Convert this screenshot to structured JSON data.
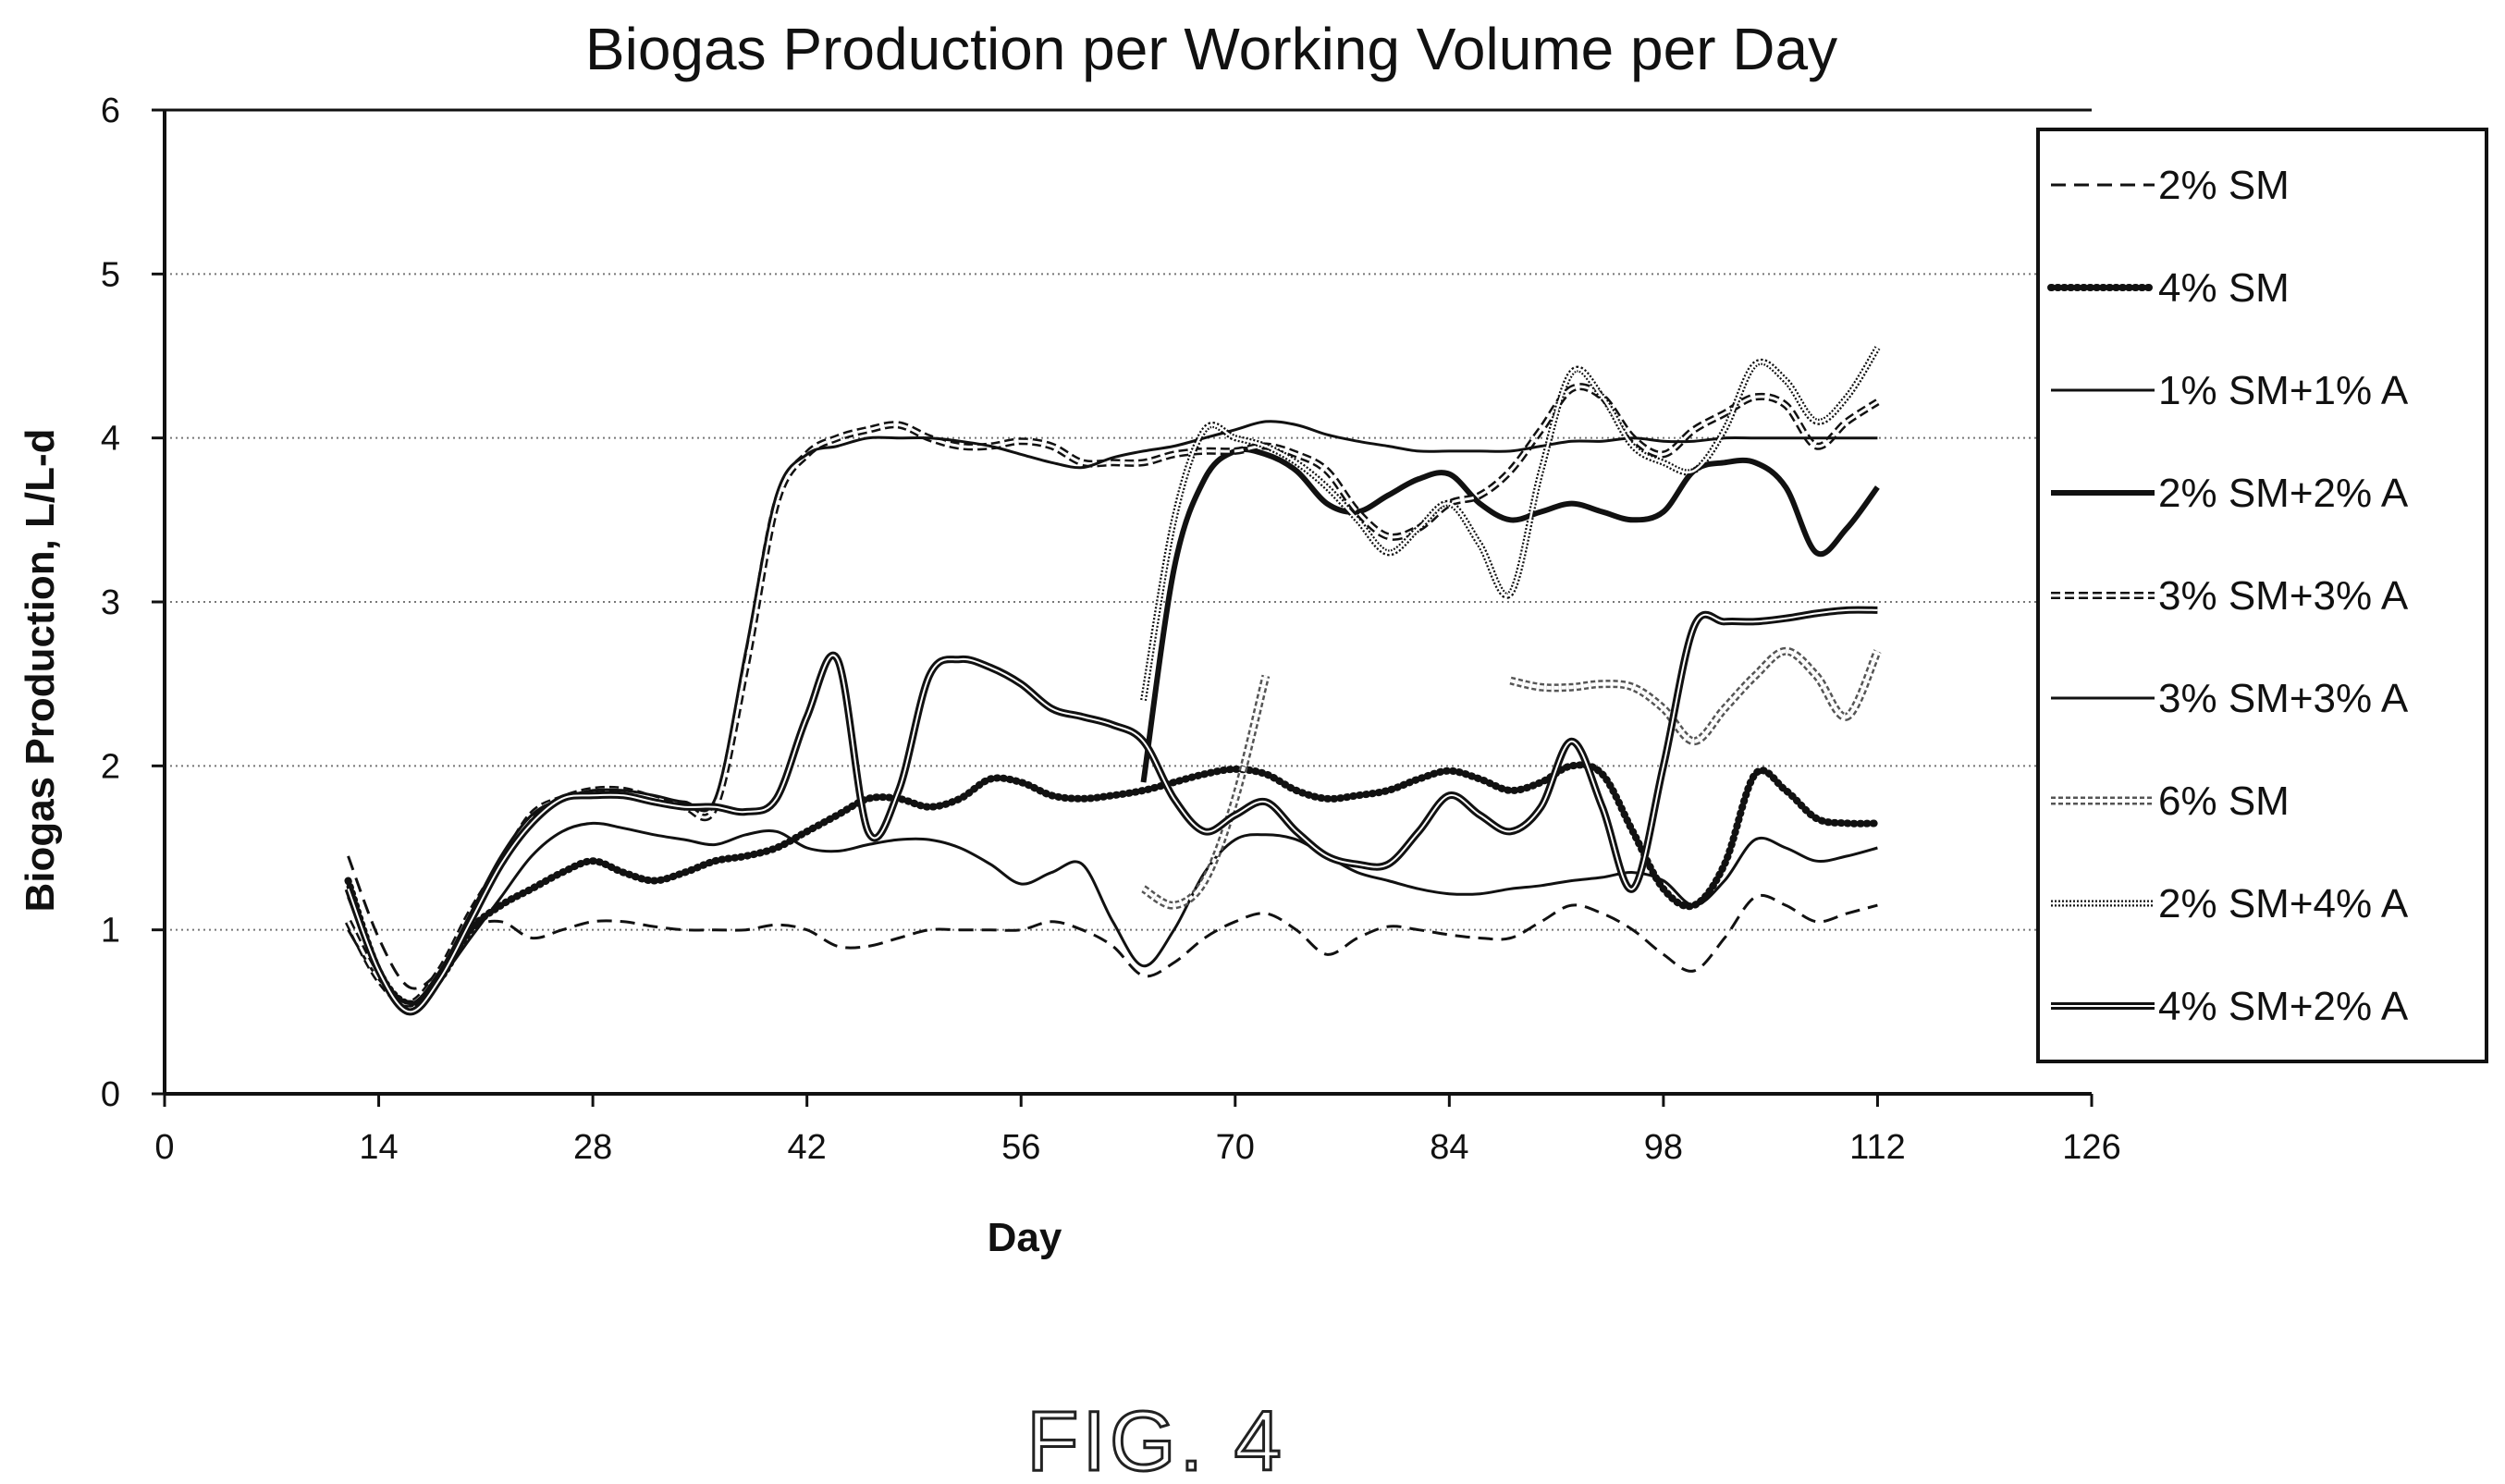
{
  "chart_data": {
    "type": "line",
    "title": "Biogas Production per Working Volume per Day",
    "xlabel": "Day",
    "ylabel": "Biogas Production, L/L-d",
    "xlim": [
      0,
      126
    ],
    "ylim": [
      0,
      6
    ],
    "xticks": [
      "0",
      "14",
      "28",
      "42",
      "56",
      "70",
      "84",
      "98",
      "112",
      "126"
    ],
    "yticks": [
      "0",
      "1",
      "2",
      "3",
      "4",
      "5",
      "6"
    ],
    "grid": "horizontal dotted",
    "legend_position": "right",
    "series": [
      {
        "name": "2% SM",
        "style": "dashed",
        "x": [
          12,
          14,
          16,
          18,
          20,
          22,
          24,
          26,
          28,
          30,
          32,
          34,
          36,
          38,
          40,
          42,
          44,
          46,
          48,
          50,
          52,
          54,
          56,
          58,
          60,
          62,
          64,
          66,
          68,
          70,
          72,
          74,
          76,
          78,
          80,
          82,
          84,
          86,
          88,
          90,
          92,
          94,
          96,
          98,
          100,
          102,
          104,
          106,
          108,
          110,
          112
        ],
        "y": [
          1.45,
          0.95,
          0.65,
          0.75,
          1.0,
          1.05,
          0.95,
          1.0,
          1.05,
          1.05,
          1.02,
          1.0,
          1.0,
          1.0,
          1.03,
          1.0,
          0.9,
          0.9,
          0.95,
          1.0,
          1.0,
          1.0,
          1.0,
          1.05,
          1.0,
          0.9,
          0.72,
          0.8,
          0.95,
          1.05,
          1.1,
          1.0,
          0.85,
          0.95,
          1.02,
          1.0,
          0.97,
          0.95,
          0.95,
          1.05,
          1.15,
          1.1,
          1.0,
          0.85,
          0.75,
          0.95,
          1.2,
          1.15,
          1.05,
          1.1,
          1.15
        ]
      },
      {
        "name": "4% SM",
        "style": "dotted-bold",
        "x": [
          12,
          14,
          16,
          18,
          20,
          22,
          24,
          26,
          28,
          30,
          32,
          34,
          36,
          38,
          40,
          42,
          44,
          46,
          48,
          50,
          52,
          54,
          56,
          58,
          60,
          62,
          64,
          66,
          68,
          70,
          72,
          74,
          76,
          78,
          80,
          82,
          84,
          86,
          88,
          90,
          92,
          94,
          96,
          98,
          100,
          102,
          104,
          106,
          108,
          110,
          112
        ],
        "y": [
          1.3,
          0.75,
          0.55,
          0.7,
          1.0,
          1.15,
          1.25,
          1.35,
          1.42,
          1.35,
          1.3,
          1.35,
          1.42,
          1.45,
          1.5,
          1.6,
          1.7,
          1.8,
          1.8,
          1.75,
          1.8,
          1.92,
          1.9,
          1.82,
          1.8,
          1.82,
          1.85,
          1.9,
          1.95,
          1.98,
          1.95,
          1.85,
          1.8,
          1.82,
          1.85,
          1.92,
          1.97,
          1.92,
          1.85,
          1.9,
          2.0,
          1.95,
          1.6,
          1.25,
          1.15,
          1.4,
          1.95,
          1.85,
          1.68,
          1.65,
          1.65
        ]
      },
      {
        "name": "1% SM+1% A",
        "style": "solid-thin",
        "x": [
          12,
          14,
          16,
          18,
          20,
          22,
          24,
          26,
          28,
          30,
          32,
          34,
          36,
          38,
          40,
          42,
          44,
          46,
          48,
          50,
          52,
          54,
          56,
          58,
          60,
          62,
          64,
          66,
          68,
          70,
          72,
          74,
          76,
          78,
          80,
          82,
          84,
          86,
          88,
          90,
          92,
          94,
          96,
          98,
          100,
          102,
          104,
          106,
          108,
          110,
          112
        ],
        "y": [
          1.0,
          0.7,
          0.55,
          0.7,
          0.95,
          1.2,
          1.45,
          1.6,
          1.65,
          1.62,
          1.58,
          1.55,
          1.52,
          1.58,
          1.6,
          1.5,
          1.48,
          1.52,
          1.55,
          1.55,
          1.5,
          1.4,
          1.28,
          1.35,
          1.4,
          1.05,
          0.78,
          1.0,
          1.35,
          1.55,
          1.58,
          1.55,
          1.45,
          1.35,
          1.3,
          1.25,
          1.22,
          1.22,
          1.25,
          1.27,
          1.3,
          1.32,
          1.35,
          1.3,
          1.15,
          1.3,
          1.55,
          1.5,
          1.42,
          1.45,
          1.5
        ]
      },
      {
        "name": "2% SM+2% A",
        "style": "solid-bold",
        "x": [
          64,
          66,
          68,
          70,
          72,
          74,
          76,
          78,
          80,
          82,
          84,
          86,
          88,
          90,
          92,
          94,
          96,
          98,
          100,
          102,
          104,
          106,
          108,
          110,
          112
        ],
        "y": [
          1.9,
          3.2,
          3.75,
          3.92,
          3.9,
          3.8,
          3.6,
          3.55,
          3.65,
          3.75,
          3.78,
          3.6,
          3.5,
          3.55,
          3.6,
          3.55,
          3.5,
          3.55,
          3.8,
          3.85,
          3.85,
          3.7,
          3.3,
          3.45,
          3.7
        ]
      },
      {
        "name": "3% SM+3% A",
        "style": "dashed-double",
        "x": [
          12,
          14,
          16,
          18,
          20,
          22,
          24,
          26,
          28,
          30,
          32,
          34,
          36,
          38,
          40,
          42,
          44,
          46,
          48,
          50,
          52,
          54,
          56,
          58,
          60,
          62,
          64,
          66,
          68,
          70,
          72,
          74,
          76,
          78,
          80,
          82,
          84,
          86,
          88,
          90,
          92,
          94,
          96,
          98,
          100,
          102,
          104,
          106,
          108,
          110,
          112
        ],
        "y": [
          1.05,
          0.7,
          0.55,
          0.75,
          1.1,
          1.4,
          1.7,
          1.8,
          1.85,
          1.85,
          1.8,
          1.75,
          1.75,
          2.6,
          3.6,
          3.9,
          4.0,
          4.05,
          4.08,
          4.0,
          3.95,
          3.95,
          3.98,
          3.95,
          3.85,
          3.85,
          3.85,
          3.9,
          3.92,
          3.92,
          3.95,
          3.9,
          3.8,
          3.55,
          3.4,
          3.45,
          3.6,
          3.65,
          3.8,
          4.05,
          4.3,
          4.25,
          4.0,
          3.9,
          4.05,
          4.15,
          4.25,
          4.2,
          3.95,
          4.1,
          4.22
        ]
      },
      {
        "name": "3% SM+3% A",
        "style": "solid-thin",
        "x": [
          12,
          14,
          16,
          18,
          20,
          22,
          24,
          26,
          28,
          30,
          32,
          34,
          36,
          38,
          40,
          42,
          44,
          46,
          48,
          50,
          52,
          54,
          56,
          58,
          60,
          62,
          64,
          66,
          68,
          70,
          72,
          74,
          76,
          78,
          80,
          82,
          84,
          86,
          88,
          90,
          92,
          94,
          96,
          98,
          100,
          102,
          104,
          106,
          108,
          110,
          112
        ],
        "y": [
          1.2,
          0.75,
          0.55,
          0.75,
          1.1,
          1.45,
          1.7,
          1.8,
          1.85,
          1.85,
          1.82,
          1.78,
          1.8,
          2.7,
          3.65,
          3.9,
          3.95,
          4.0,
          4.0,
          4.0,
          3.98,
          3.95,
          3.9,
          3.85,
          3.82,
          3.88,
          3.92,
          3.95,
          4.0,
          4.05,
          4.1,
          4.08,
          4.02,
          3.98,
          3.95,
          3.92,
          3.92,
          3.92,
          3.92,
          3.95,
          3.98,
          3.98,
          4.0,
          3.98,
          3.98,
          4.0,
          4.0,
          4.0,
          4.0,
          4.0,
          4.0
        ]
      },
      {
        "name": "6% SM",
        "style": "hollow-square",
        "x": [
          64,
          66,
          68,
          70,
          72,
          88,
          90,
          92,
          94,
          96,
          98,
          100,
          102,
          104,
          106,
          108,
          110,
          112
        ],
        "y": [
          1.25,
          1.15,
          1.3,
          1.8,
          2.55,
          2.52,
          2.48,
          2.48,
          2.5,
          2.48,
          2.35,
          2.15,
          2.35,
          2.55,
          2.7,
          2.55,
          2.3,
          2.7
        ]
      },
      {
        "name": "2% SM+4% A",
        "style": "wavy",
        "x": [
          64,
          66,
          68,
          70,
          72,
          74,
          76,
          78,
          80,
          82,
          84,
          86,
          88,
          90,
          92,
          94,
          96,
          98,
          100,
          102,
          104,
          106,
          108,
          110,
          112
        ],
        "y": [
          2.4,
          3.5,
          4.05,
          4.0,
          3.95,
          3.85,
          3.7,
          3.5,
          3.3,
          3.45,
          3.6,
          3.35,
          3.05,
          3.8,
          4.4,
          4.25,
          3.95,
          3.85,
          3.8,
          4.05,
          4.45,
          4.35,
          4.1,
          4.25,
          4.55
        ]
      },
      {
        "name": "4% SM+2% A",
        "style": "double-bold",
        "x": [
          12,
          14,
          16,
          18,
          20,
          22,
          24,
          26,
          28,
          30,
          32,
          34,
          36,
          38,
          40,
          42,
          44,
          46,
          48,
          50,
          52,
          54,
          56,
          58,
          60,
          62,
          64,
          66,
          68,
          70,
          72,
          74,
          76,
          78,
          80,
          82,
          84,
          86,
          88,
          90,
          92,
          94,
          96,
          98,
          100,
          102,
          104,
          106,
          108,
          110,
          112
        ],
        "y": [
          1.25,
          0.75,
          0.5,
          0.7,
          1.05,
          1.4,
          1.65,
          1.8,
          1.82,
          1.82,
          1.78,
          1.75,
          1.75,
          1.72,
          1.8,
          2.3,
          2.65,
          1.6,
          1.85,
          2.55,
          2.65,
          2.6,
          2.5,
          2.35,
          2.3,
          2.25,
          2.15,
          1.8,
          1.6,
          1.7,
          1.78,
          1.6,
          1.45,
          1.4,
          1.4,
          1.6,
          1.82,
          1.7,
          1.6,
          1.75,
          2.15,
          1.75,
          1.25,
          2.0,
          2.85,
          2.88,
          2.88,
          2.9,
          2.93,
          2.95,
          2.95
        ]
      }
    ]
  },
  "figure_label": "FIG. 4"
}
